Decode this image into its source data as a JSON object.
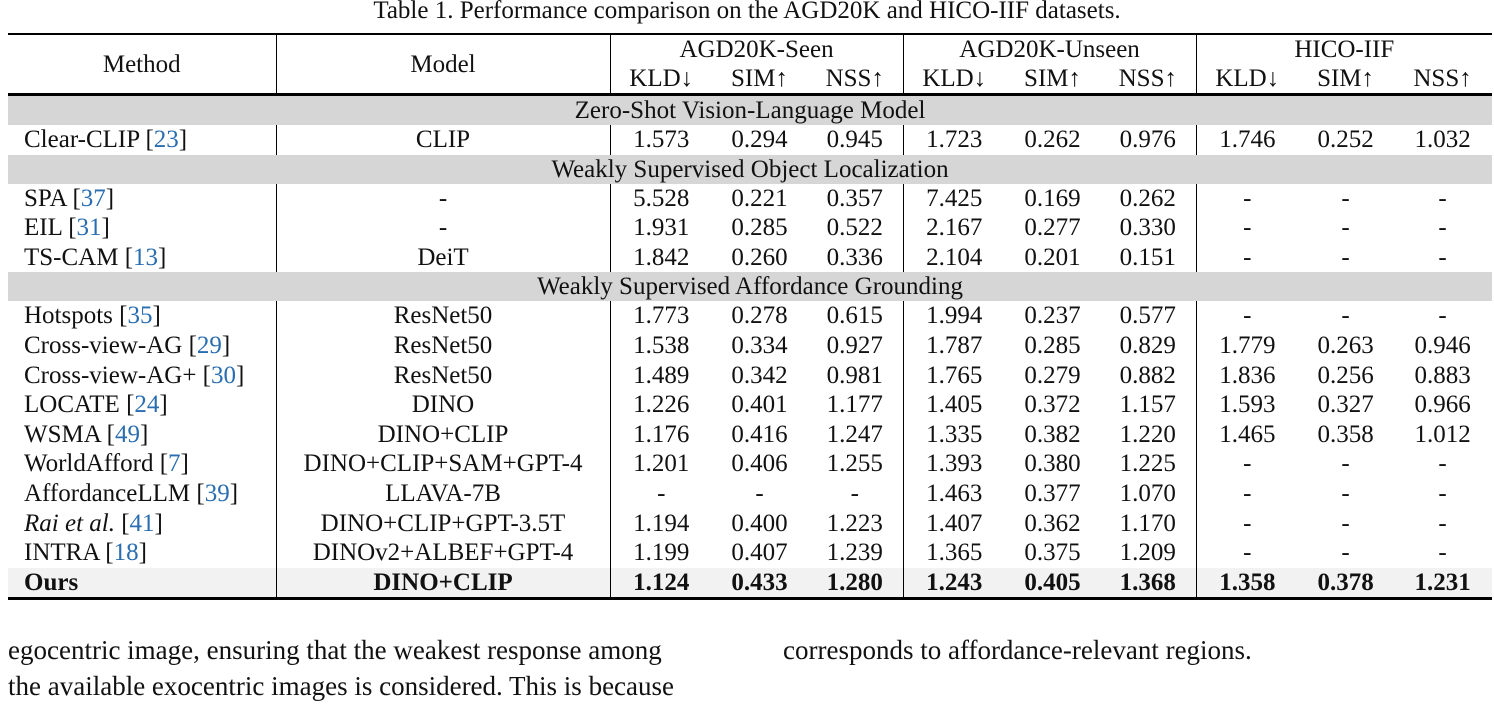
{
  "caption": "Table 1. Performance comparison on the AGD20K and HICO-IIF datasets.",
  "header": {
    "method": "Method",
    "model": "Model",
    "groups": [
      "AGD20K-Seen",
      "AGD20K-Unseen",
      "HICO-IIF"
    ],
    "metrics": [
      "KLD↓",
      "SIM↑",
      "NSS↑"
    ]
  },
  "sections": [
    {
      "title": "Zero-Shot Vision-Language Model",
      "rows": [
        {
          "method": "Clear-CLIP",
          "ref": "23",
          "model": "CLIP",
          "values": [
            "1.573",
            "0.294",
            "0.945",
            "1.723",
            "0.262",
            "0.976",
            "1.746",
            "0.252",
            "1.032"
          ]
        }
      ]
    },
    {
      "title": "Weakly Supervised Object Localization",
      "rows": [
        {
          "method": "SPA",
          "ref": "37",
          "model": "-",
          "values": [
            "5.528",
            "0.221",
            "0.357",
            "7.425",
            "0.169",
            "0.262",
            "-",
            "-",
            "-"
          ]
        },
        {
          "method": "EIL",
          "ref": "31",
          "model": "-",
          "values": [
            "1.931",
            "0.285",
            "0.522",
            "2.167",
            "0.277",
            "0.330",
            "-",
            "-",
            "-"
          ]
        },
        {
          "method": "TS-CAM",
          "ref": "13",
          "model": "DeiT",
          "values": [
            "1.842",
            "0.260",
            "0.336",
            "2.104",
            "0.201",
            "0.151",
            "-",
            "-",
            "-"
          ]
        }
      ]
    },
    {
      "title": "Weakly Supervised Affordance Grounding",
      "rows": [
        {
          "method": "Hotspots",
          "ref": "35",
          "model": "ResNet50",
          "values": [
            "1.773",
            "0.278",
            "0.615",
            "1.994",
            "0.237",
            "0.577",
            "-",
            "-",
            "-"
          ]
        },
        {
          "method": "Cross-view-AG",
          "ref": "29",
          "model": "ResNet50",
          "values": [
            "1.538",
            "0.334",
            "0.927",
            "1.787",
            "0.285",
            "0.829",
            "1.779",
            "0.263",
            "0.946"
          ]
        },
        {
          "method": "Cross-view-AG+",
          "ref": "30",
          "model": "ResNet50",
          "values": [
            "1.489",
            "0.342",
            "0.981",
            "1.765",
            "0.279",
            "0.882",
            "1.836",
            "0.256",
            "0.883"
          ]
        },
        {
          "method": "LOCATE",
          "ref": "24",
          "model": "DINO",
          "values": [
            "1.226",
            "0.401",
            "1.177",
            "1.405",
            "0.372",
            "1.157",
            "1.593",
            "0.327",
            "0.966"
          ]
        },
        {
          "method": "WSMA",
          "ref": "49",
          "model": "DINO+CLIP",
          "values": [
            "1.176",
            "0.416",
            "1.247",
            "1.335",
            "0.382",
            "1.220",
            "1.465",
            "0.358",
            "1.012"
          ]
        },
        {
          "method": "WorldAfford",
          "ref": "7",
          "model": "DINO+CLIP+SAM+GPT-4",
          "values": [
            "1.201",
            "0.406",
            "1.255",
            "1.393",
            "0.380",
            "1.225",
            "-",
            "-",
            "-"
          ]
        },
        {
          "method": "AffordanceLLM",
          "ref": "39",
          "model": "LLAVA-7B",
          "values": [
            "-",
            "-",
            "-",
            "1.463",
            "0.377",
            "1.070",
            "-",
            "-",
            "-"
          ]
        },
        {
          "method": "Rai et al.",
          "ref": "41",
          "model": "DINO+CLIP+GPT-3.5T",
          "values": [
            "1.194",
            "0.400",
            "1.223",
            "1.407",
            "0.362",
            "1.170",
            "-",
            "-",
            "-"
          ]
        },
        {
          "method": "INTRA",
          "ref": "18",
          "model": "DINOv2+ALBEF+GPT-4",
          "values": [
            "1.199",
            "0.407",
            "1.239",
            "1.365",
            "0.375",
            "1.209",
            "-",
            "-",
            "-"
          ]
        }
      ]
    }
  ],
  "ours": {
    "method": "Ours",
    "model": "DINO+CLIP",
    "values": [
      "1.124",
      "0.433",
      "1.280",
      "1.243",
      "0.405",
      "1.368",
      "1.358",
      "0.378",
      "1.231"
    ]
  },
  "body_text": {
    "left_lines": [
      "egocentric image, ensuring that the weakest response among",
      "the available exocentric images is considered. This is because"
    ],
    "right_lines": [
      "corresponds to affordance-relevant regions."
    ]
  }
}
